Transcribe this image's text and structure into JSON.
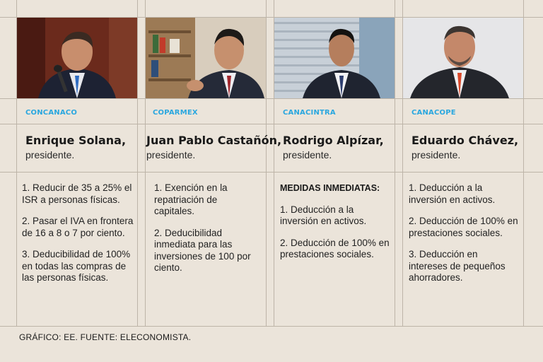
{
  "columns": [
    {
      "org": "CONCANACO",
      "name": "Enrique Solana,",
      "role": "presidente.",
      "heading": "",
      "items": [
        "1. Reducir de 35 a 25% el ISR a personas físicas.",
        "2. Pasar el IVA en frontera de 16 a 8 o 7 por ciento.",
        "3. Deducibilidad de 100% en todas las compras de las personas físicas."
      ]
    },
    {
      "org": "COPARMEX",
      "name": "Juan Pablo Castañón,",
      "role": "presidente.",
      "heading": "",
      "items": [
        "1. Exención en la repatriación de capitales.",
        "2. Deducibilidad inmediata para las inversiones de 100 por ciento."
      ]
    },
    {
      "org": "CANACINTRA",
      "name": "Rodrigo Alpízar,",
      "role": "presidente.",
      "heading": "MEDIDAS INMEDIATAS:",
      "items": [
        "1. Deducción a la inversión en activos.",
        "2. Deducción de 100% en prestaciones sociales."
      ]
    },
    {
      "org": "CANACOPE",
      "name": "Eduardo Chávez,",
      "role": "presidente.",
      "heading": "",
      "items": [
        "1. Deducción a la inversión en activos.",
        "2. Deducción de 100% en prestaciones sociales.",
        "3. Deducción en intereses de pequeños ahorradores."
      ]
    }
  ],
  "footer": "GRÁFICO: EE. FUENTE: ELECONOMISTA.",
  "colors": {
    "org_label": "#2aa7df",
    "background": "#ebe4da",
    "grid": "#bdb4a8"
  }
}
